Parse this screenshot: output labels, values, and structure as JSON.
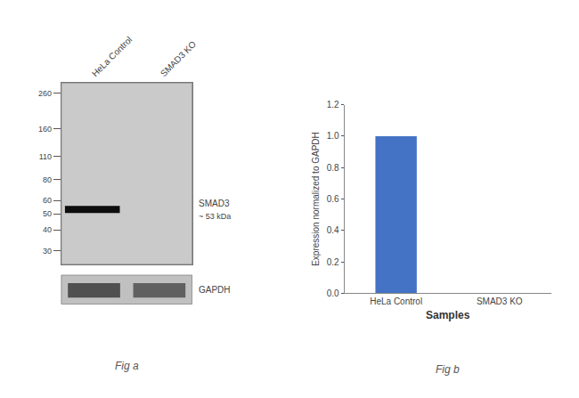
{
  "chart_data": [
    {
      "type": "blot",
      "categories": [
        "HeLa Control",
        "SMAD3 KO"
      ],
      "values": [
        53,
        null
      ],
      "color": "#0d0d0d",
      "log": "y",
      "ylim": [
        25,
        300
      ],
      "yticks": [
        260,
        160,
        110,
        80,
        60,
        50,
        40,
        30
      ],
      "annotations": [
        "SMAD3",
        "~ 53 kDa",
        "GAPDH",
        "Fig a"
      ],
      "grid": false
    },
    {
      "type": "bar",
      "categories": [
        "HeLa Control",
        "SMAD3 KO"
      ],
      "values": [
        1.0,
        0.0
      ],
      "color": "#4472c4",
      "xlabel": "Samples",
      "ylabel": "Expression normalized to GAPDH",
      "ylim": [
        0,
        1.2
      ],
      "yticks": [
        {
          "value": 0,
          "label": "0.0"
        },
        0.2,
        0.4,
        0.6,
        0.8,
        {
          "value": 1.0,
          "label": "1.0"
        },
        1.2
      ],
      "grid": false,
      "annotations": [
        "Fig b"
      ]
    }
  ]
}
